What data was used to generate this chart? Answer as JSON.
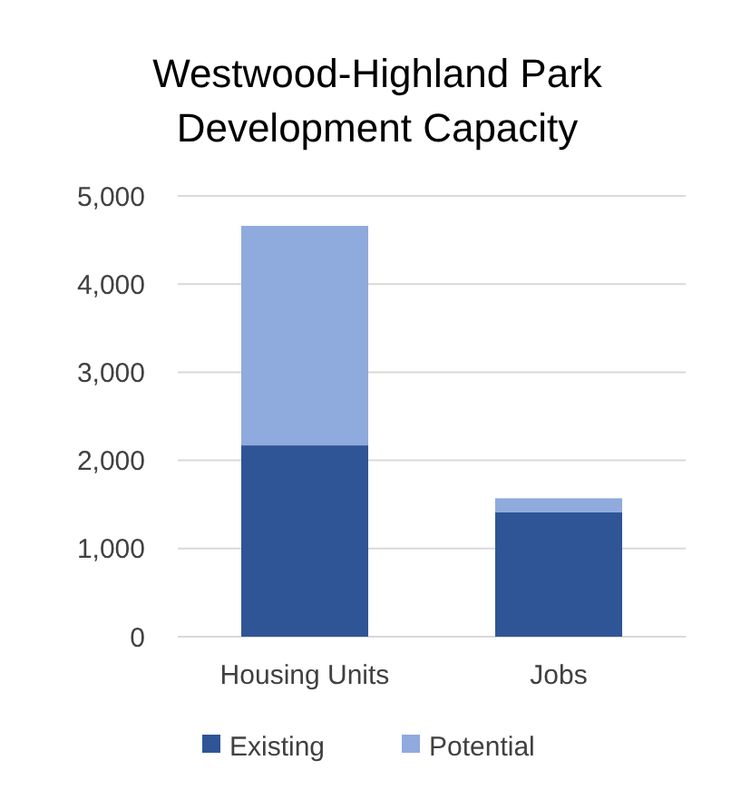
{
  "chart_data": {
    "type": "bar",
    "title": "Westwood-Highland Park Development Capacity",
    "categories": [
      "Housing Units",
      "Jobs"
    ],
    "stacked": true,
    "series": [
      {
        "name": "Existing",
        "color": "#2f5597",
        "values": [
          2170,
          1410
        ]
      },
      {
        "name": "Potential",
        "color": "#8faadc",
        "values": [
          2490,
          160
        ]
      }
    ],
    "ylim": [
      0,
      5000
    ],
    "yticks": [
      {
        "value": 0,
        "label": "0"
      },
      {
        "value": 1000,
        "label": "1,000"
      },
      {
        "value": 2000,
        "label": "2,000"
      },
      {
        "value": 3000,
        "label": "3,000"
      },
      {
        "value": 4000,
        "label": "4,000"
      },
      {
        "value": 5000,
        "label": "5,000"
      }
    ],
    "grid": "y",
    "legend": "bottom"
  }
}
